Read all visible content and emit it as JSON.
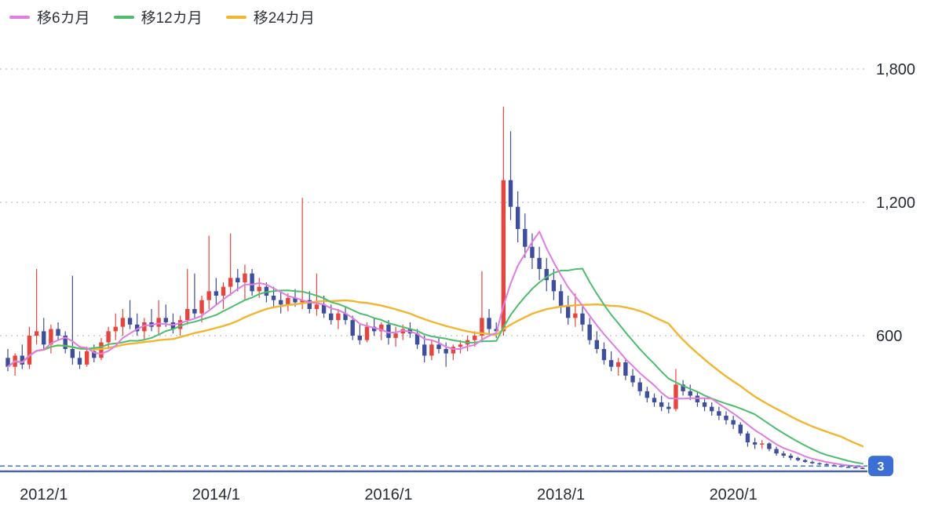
{
  "price_marker": {
    "value": 3,
    "label": "3",
    "badge_color": "#3b6fd6",
    "line_color": "#4f7fd9"
  },
  "chart_data": {
    "type": "candlestick",
    "interval": "monthly",
    "title": "Monthly candlestick stock chart with 6/12/24-month moving averages, price declining to 3",
    "colors": {
      "up": "#e5453d",
      "down": "#3d4e9e",
      "grid": "#c8ccd4",
      "axis_text": "#262b36",
      "axis_line": "#4a659c"
    },
    "moving_averages": [
      {
        "period": 6,
        "label": "移6カ月",
        "color": "#e07ce2"
      },
      {
        "period": 12,
        "label": "移12カ月",
        "color": "#4dbd6d"
      },
      {
        "period": 24,
        "label": "移24カ月",
        "color": "#f3b52f"
      }
    ],
    "y_axis": {
      "min": 0,
      "max": 1800,
      "ticks": [
        {
          "value": 1800,
          "label": "1,800"
        },
        {
          "value": 1200,
          "label": "1,200"
        },
        {
          "value": 600,
          "label": "600"
        }
      ]
    },
    "x_axis": {
      "ticks": [
        {
          "index": 5,
          "label": "2012/1"
        },
        {
          "index": 29,
          "label": "2014/1"
        },
        {
          "index": 53,
          "label": "2016/1"
        },
        {
          "index": 77,
          "label": "2018/1"
        },
        {
          "index": 101,
          "label": "2020/1"
        }
      ]
    },
    "columns": [
      "month",
      "open",
      "high",
      "low",
      "close"
    ],
    "candles": [
      [
        "2011-08",
        500,
        540,
        440,
        460
      ],
      [
        "2011-09",
        460,
        520,
        420,
        510
      ],
      [
        "2011-10",
        510,
        560,
        450,
        470
      ],
      [
        "2011-11",
        470,
        640,
        450,
        600
      ],
      [
        "2011-12",
        600,
        900,
        560,
        620
      ],
      [
        "2012-01",
        620,
        680,
        540,
        560
      ],
      [
        "2012-02",
        560,
        650,
        520,
        630
      ],
      [
        "2012-03",
        630,
        660,
        580,
        600
      ],
      [
        "2012-04",
        600,
        620,
        520,
        540
      ],
      [
        "2012-05",
        540,
        870,
        470,
        500
      ],
      [
        "2012-06",
        500,
        530,
        450,
        470
      ],
      [
        "2012-07",
        470,
        550,
        460,
        530
      ],
      [
        "2012-08",
        530,
        560,
        480,
        500
      ],
      [
        "2012-09",
        500,
        590,
        490,
        570
      ],
      [
        "2012-10",
        570,
        640,
        540,
        620
      ],
      [
        "2012-11",
        620,
        700,
        580,
        640
      ],
      [
        "2012-12",
        640,
        720,
        600,
        680
      ],
      [
        "2013-01",
        680,
        760,
        630,
        650
      ],
      [
        "2013-02",
        650,
        700,
        600,
        620
      ],
      [
        "2013-03",
        620,
        680,
        580,
        660
      ],
      [
        "2013-04",
        660,
        720,
        620,
        640
      ],
      [
        "2013-05",
        640,
        760,
        600,
        680
      ],
      [
        "2013-06",
        680,
        740,
        640,
        660
      ],
      [
        "2013-07",
        660,
        700,
        610,
        630
      ],
      [
        "2013-08",
        630,
        690,
        600,
        670
      ],
      [
        "2013-09",
        670,
        900,
        650,
        720
      ],
      [
        "2013-10",
        720,
        880,
        680,
        700
      ],
      [
        "2013-11",
        700,
        780,
        660,
        760
      ],
      [
        "2013-12",
        760,
        1050,
        720,
        800
      ],
      [
        "2014-01",
        800,
        860,
        740,
        780
      ],
      [
        "2014-02",
        780,
        840,
        720,
        820
      ],
      [
        "2014-03",
        820,
        1060,
        780,
        860
      ],
      [
        "2014-04",
        860,
        900,
        800,
        840
      ],
      [
        "2014-05",
        840,
        920,
        760,
        880
      ],
      [
        "2014-06",
        880,
        900,
        780,
        800
      ],
      [
        "2014-07",
        800,
        860,
        770,
        820
      ],
      [
        "2014-08",
        820,
        840,
        750,
        780
      ],
      [
        "2014-09",
        780,
        820,
        730,
        760
      ],
      [
        "2014-10",
        760,
        800,
        700,
        740
      ],
      [
        "2014-11",
        740,
        790,
        710,
        770
      ],
      [
        "2014-12",
        770,
        810,
        730,
        750
      ],
      [
        "2015-01",
        750,
        1220,
        720,
        760
      ],
      [
        "2015-02",
        760,
        800,
        700,
        720
      ],
      [
        "2015-03",
        720,
        880,
        690,
        740
      ],
      [
        "2015-04",
        740,
        780,
        680,
        700
      ],
      [
        "2015-05",
        700,
        740,
        650,
        670
      ],
      [
        "2015-06",
        670,
        720,
        630,
        700
      ],
      [
        "2015-07",
        700,
        730,
        650,
        670
      ],
      [
        "2015-08",
        670,
        690,
        580,
        600
      ],
      [
        "2015-09",
        600,
        650,
        560,
        580
      ],
      [
        "2015-10",
        580,
        660,
        570,
        640
      ],
      [
        "2015-11",
        640,
        680,
        600,
        620
      ],
      [
        "2015-12",
        620,
        660,
        580,
        650
      ],
      [
        "2016-01",
        650,
        670,
        560,
        590
      ],
      [
        "2016-02",
        590,
        640,
        550,
        610
      ],
      [
        "2016-03",
        610,
        650,
        580,
        630
      ],
      [
        "2016-04",
        630,
        660,
        590,
        610
      ],
      [
        "2016-05",
        610,
        630,
        540,
        560
      ],
      [
        "2016-06",
        560,
        600,
        480,
        510
      ],
      [
        "2016-07",
        510,
        580,
        490,
        560
      ],
      [
        "2016-08",
        560,
        590,
        520,
        540
      ],
      [
        "2016-09",
        540,
        570,
        460,
        520
      ],
      [
        "2016-10",
        520,
        560,
        490,
        550
      ],
      [
        "2016-11",
        550,
        580,
        520,
        560
      ],
      [
        "2016-12",
        560,
        600,
        530,
        580
      ],
      [
        "2017-01",
        580,
        620,
        550,
        600
      ],
      [
        "2017-02",
        600,
        890,
        570,
        680
      ],
      [
        "2017-03",
        680,
        720,
        610,
        630
      ],
      [
        "2017-04",
        630,
        660,
        590,
        620
      ],
      [
        "2017-05",
        620,
        1630,
        600,
        1300
      ],
      [
        "2017-06",
        1300,
        1520,
        1120,
        1180
      ],
      [
        "2017-07",
        1180,
        1250,
        1020,
        1080
      ],
      [
        "2017-08",
        1080,
        1150,
        950,
        1000
      ],
      [
        "2017-09",
        1000,
        1060,
        900,
        950
      ],
      [
        "2017-10",
        950,
        1000,
        850,
        900
      ],
      [
        "2017-11",
        900,
        950,
        800,
        850
      ],
      [
        "2017-12",
        850,
        900,
        760,
        800
      ],
      [
        "2018-01",
        800,
        830,
        700,
        730
      ],
      [
        "2018-02",
        730,
        780,
        650,
        680
      ],
      [
        "2018-03",
        680,
        790,
        640,
        700
      ],
      [
        "2018-04",
        700,
        730,
        620,
        650
      ],
      [
        "2018-05",
        650,
        680,
        560,
        580
      ],
      [
        "2018-06",
        580,
        620,
        520,
        540
      ],
      [
        "2018-07",
        540,
        570,
        470,
        490
      ],
      [
        "2018-08",
        490,
        530,
        440,
        460
      ],
      [
        "2018-09",
        460,
        500,
        420,
        480
      ],
      [
        "2018-10",
        480,
        500,
        400,
        420
      ],
      [
        "2018-11",
        420,
        450,
        370,
        390
      ],
      [
        "2018-12",
        390,
        410,
        330,
        350
      ],
      [
        "2019-01",
        350,
        370,
        300,
        320
      ],
      [
        "2019-02",
        320,
        340,
        280,
        300
      ],
      [
        "2019-03",
        300,
        330,
        260,
        280
      ],
      [
        "2019-04",
        280,
        300,
        250,
        270
      ],
      [
        "2019-05",
        270,
        450,
        260,
        380
      ],
      [
        "2019-06",
        380,
        400,
        330,
        350
      ],
      [
        "2019-07",
        350,
        380,
        310,
        330
      ],
      [
        "2019-08",
        330,
        350,
        280,
        300
      ],
      [
        "2019-09",
        300,
        320,
        260,
        280
      ],
      [
        "2019-10",
        280,
        300,
        240,
        260
      ],
      [
        "2019-11",
        260,
        280,
        220,
        240
      ],
      [
        "2019-12",
        240,
        260,
        200,
        220
      ],
      [
        "2020-01",
        220,
        240,
        180,
        200
      ],
      [
        "2020-02",
        200,
        210,
        150,
        160
      ],
      [
        "2020-03",
        160,
        170,
        100,
        120
      ],
      [
        "2020-04",
        120,
        140,
        90,
        110
      ],
      [
        "2020-05",
        110,
        130,
        90,
        115
      ],
      [
        "2020-06",
        115,
        120,
        80,
        90
      ],
      [
        "2020-07",
        90,
        100,
        60,
        70
      ],
      [
        "2020-08",
        70,
        80,
        50,
        60
      ],
      [
        "2020-09",
        60,
        70,
        40,
        50
      ],
      [
        "2020-10",
        50,
        55,
        35,
        40
      ],
      [
        "2020-11",
        40,
        45,
        28,
        32
      ],
      [
        "2020-12",
        32,
        38,
        22,
        26
      ],
      [
        "2021-01",
        26,
        30,
        18,
        22
      ],
      [
        "2021-02",
        22,
        26,
        14,
        18
      ],
      [
        "2021-03",
        18,
        22,
        10,
        14
      ],
      [
        "2021-04",
        14,
        18,
        8,
        10
      ],
      [
        "2021-05",
        10,
        14,
        5,
        8
      ],
      [
        "2021-06",
        8,
        10,
        4,
        5
      ],
      [
        "2021-07",
        5,
        7,
        2,
        3
      ]
    ]
  }
}
